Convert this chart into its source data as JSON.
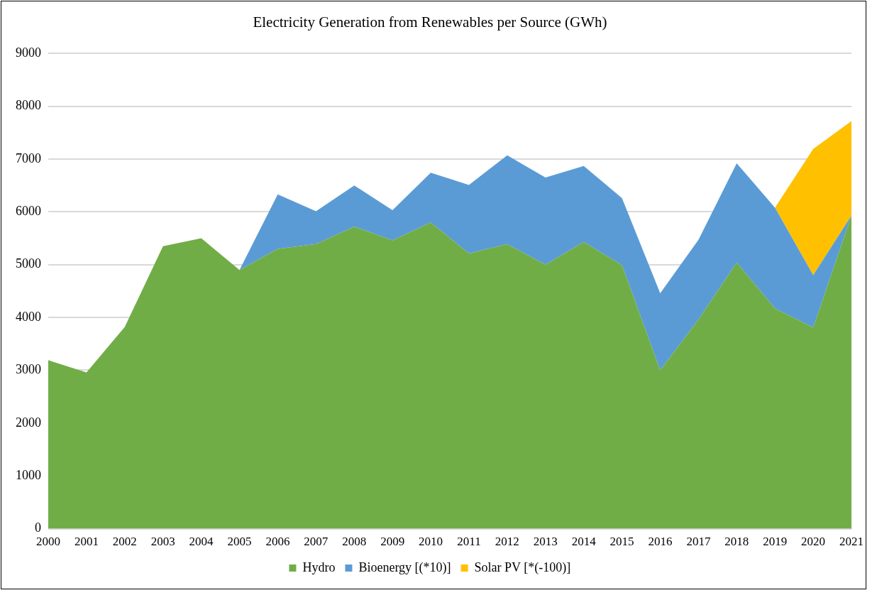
{
  "chart_data": {
    "type": "area",
    "title": "Electricity Generation from Renewables per Source (GWh)",
    "stacked": true,
    "categories": [
      "2000",
      "2001",
      "2002",
      "2003",
      "2004",
      "2005",
      "2006",
      "2007",
      "2008",
      "2009",
      "2010",
      "2011",
      "2012",
      "2013",
      "2014",
      "2015",
      "2016",
      "2017",
      "2018",
      "2019",
      "2020",
      "2021"
    ],
    "series": [
      {
        "name": "Hydro",
        "color": "#70ad47",
        "values": [
          3190,
          2960,
          3820,
          5350,
          5500,
          4900,
          5300,
          5390,
          5720,
          5460,
          5800,
          5210,
          5390,
          5000,
          5430,
          4990,
          3000,
          3960,
          5040,
          4170,
          3810,
          5930
        ]
      },
      {
        "name": "Bioenergy [(*10)]",
        "color": "#5b9bd5",
        "values": [
          null,
          null,
          null,
          null,
          null,
          0,
          1030,
          620,
          780,
          570,
          940,
          1300,
          1680,
          1650,
          1440,
          1270,
          1460,
          1510,
          1880,
          1910,
          990,
          0
        ]
      },
      {
        "name": "Solar PV [*(-100)]",
        "color": "#ffc000",
        "values": [
          null,
          null,
          null,
          null,
          null,
          null,
          null,
          null,
          null,
          null,
          null,
          null,
          null,
          null,
          null,
          null,
          null,
          null,
          null,
          0,
          2390,
          1790
        ]
      }
    ],
    "ylim": [
      0,
      9000
    ],
    "yticks": [
      0,
      1000,
      2000,
      3000,
      4000,
      5000,
      6000,
      7000,
      8000,
      9000
    ],
    "grid": "y",
    "legend": "bottom"
  }
}
